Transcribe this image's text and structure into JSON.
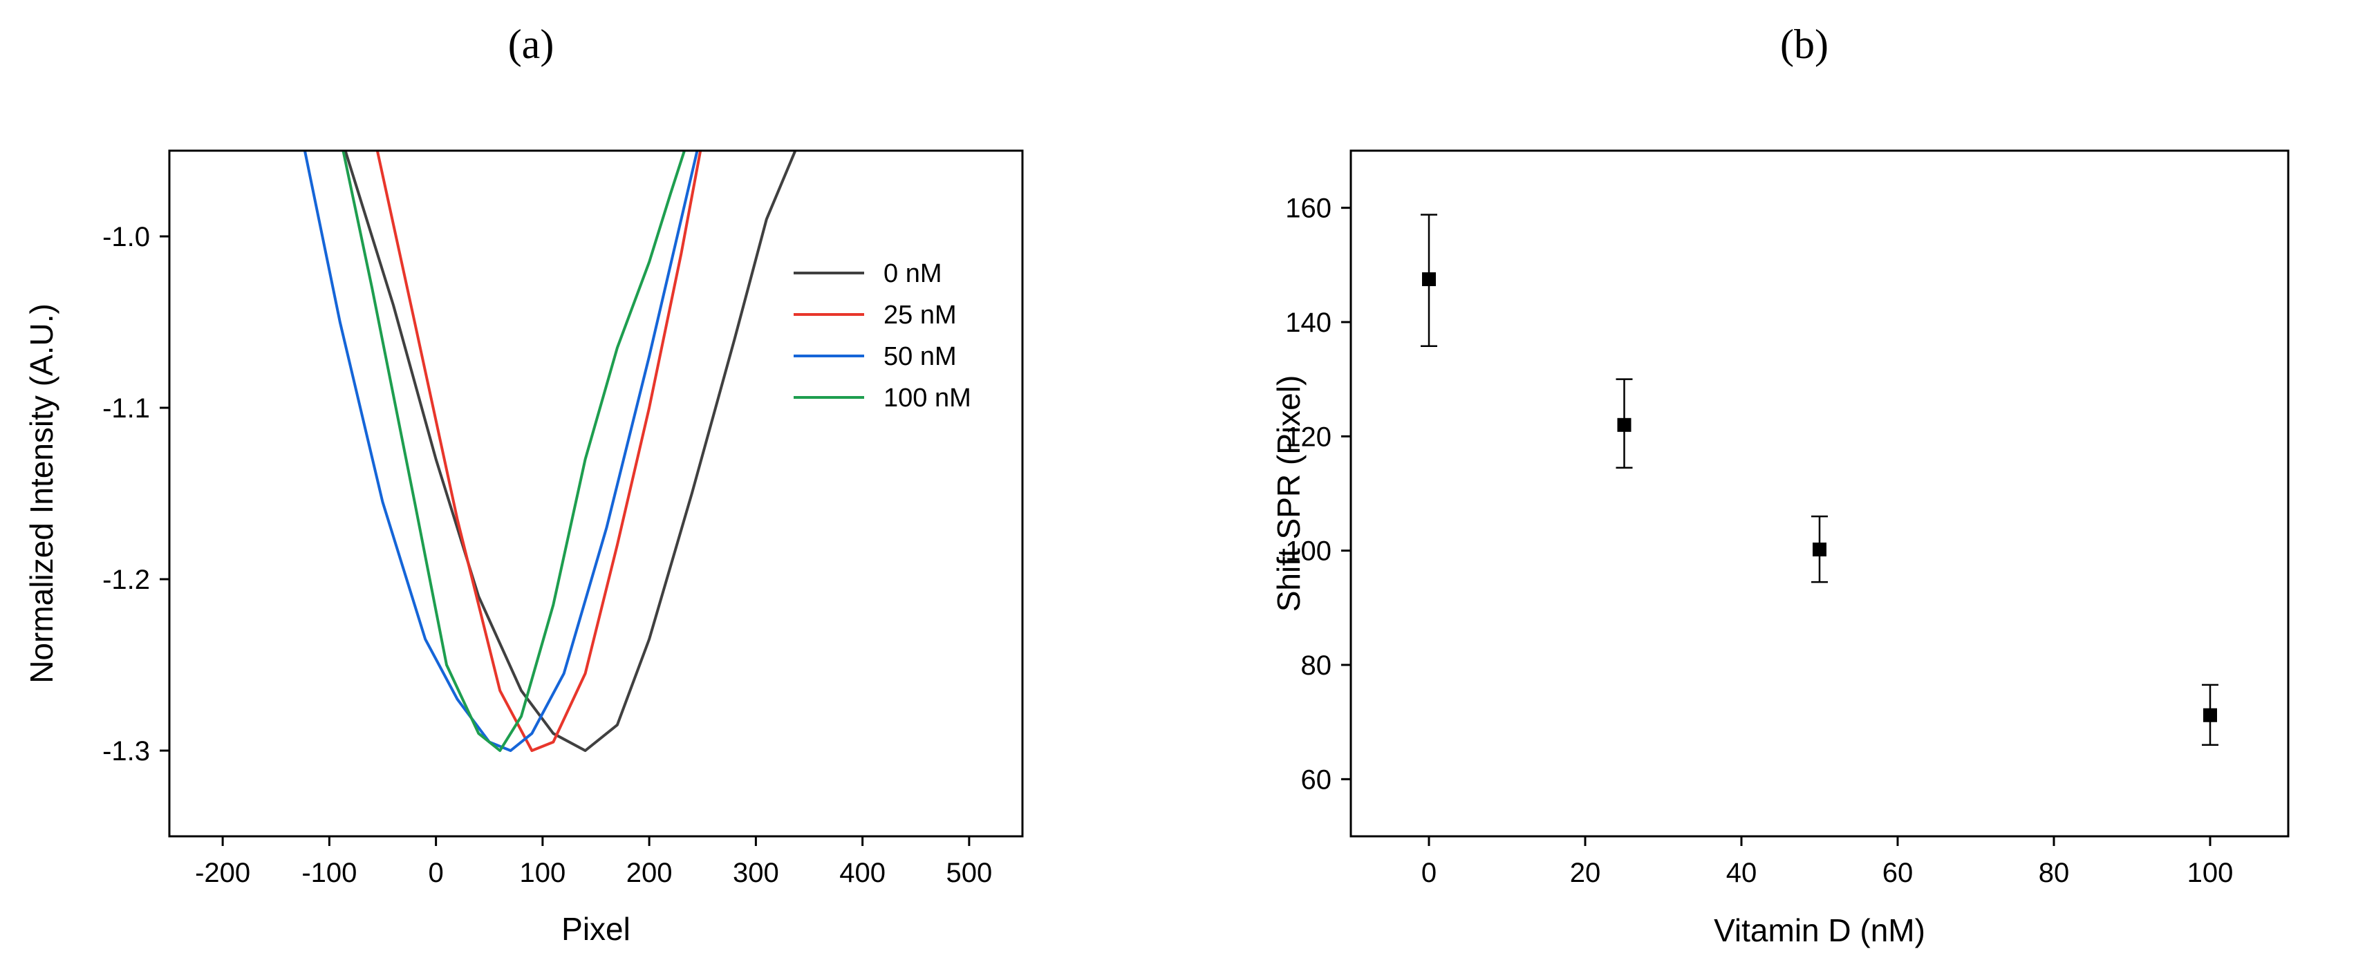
{
  "chart_data": [
    {
      "type": "line",
      "panel_label": "(a)",
      "xlabel": "Pixel",
      "ylabel": "Normalized Intensity (A.U.)",
      "xlim": [
        -250,
        550
      ],
      "ylim": [
        -1.35,
        -0.95
      ],
      "xticks": [
        -200,
        -100,
        0,
        100,
        200,
        300,
        400,
        500
      ],
      "yticks": [
        -1.0,
        -1.1,
        -1.2,
        -1.3
      ],
      "grid": false,
      "legend_position": "right",
      "series": [
        {
          "name": "0 nM",
          "color": "#404040",
          "x": [
            -85,
            -40,
            0,
            40,
            80,
            110,
            140,
            170,
            200,
            240,
            280,
            310,
            337
          ],
          "y": [
            -0.95,
            -1.04,
            -1.13,
            -1.21,
            -1.265,
            -1.29,
            -1.3,
            -1.285,
            -1.235,
            -1.15,
            -1.06,
            -0.99,
            -0.95
          ]
        },
        {
          "name": "25 nM",
          "color": "#e8362b",
          "x": [
            -55,
            -20,
            20,
            60,
            90,
            110,
            140,
            170,
            200,
            230,
            248
          ],
          "y": [
            -0.95,
            -1.05,
            -1.165,
            -1.265,
            -1.3,
            -1.295,
            -1.255,
            -1.18,
            -1.1,
            -1.01,
            -0.95
          ]
        },
        {
          "name": "50 nM",
          "color": "#1565d8",
          "x": [
            -123,
            -90,
            -50,
            -10,
            20,
            50,
            70,
            90,
            120,
            160,
            200,
            230,
            245
          ],
          "y": [
            -0.95,
            -1.05,
            -1.155,
            -1.235,
            -1.27,
            -1.295,
            -1.3,
            -1.29,
            -1.255,
            -1.17,
            -1.07,
            -0.99,
            -0.95
          ]
        },
        {
          "name": "100 nM",
          "color": "#1e9e4f",
          "x": [
            -87,
            -60,
            -20,
            10,
            40,
            60,
            80,
            110,
            140,
            170,
            200,
            220,
            233
          ],
          "y": [
            -0.95,
            -1.03,
            -1.155,
            -1.25,
            -1.29,
            -1.3,
            -1.28,
            -1.215,
            -1.13,
            -1.065,
            -1.015,
            -0.975,
            -0.95
          ]
        }
      ]
    },
    {
      "type": "scatter",
      "panel_label": "(b)",
      "xlabel": "Vitamin D (nM)",
      "ylabel": "Shift SPR (Pixel)",
      "xlim": [
        -10,
        110
      ],
      "ylim": [
        50,
        170
      ],
      "xticks": [
        0,
        20,
        40,
        60,
        80,
        100
      ],
      "yticks": [
        60,
        80,
        100,
        120,
        140,
        160
      ],
      "grid": false,
      "marker": "square",
      "marker_color": "#000000",
      "points": [
        {
          "x": 0,
          "y": 147.5,
          "err_low": 135.8,
          "err_high": 158.8
        },
        {
          "x": 25,
          "y": 122,
          "err_low": 114.5,
          "err_high": 130
        },
        {
          "x": 50,
          "y": 100.2,
          "err_low": 94.5,
          "err_high": 106
        },
        {
          "x": 100,
          "y": 71.2,
          "err_low": 66,
          "err_high": 76.5
        }
      ]
    }
  ]
}
